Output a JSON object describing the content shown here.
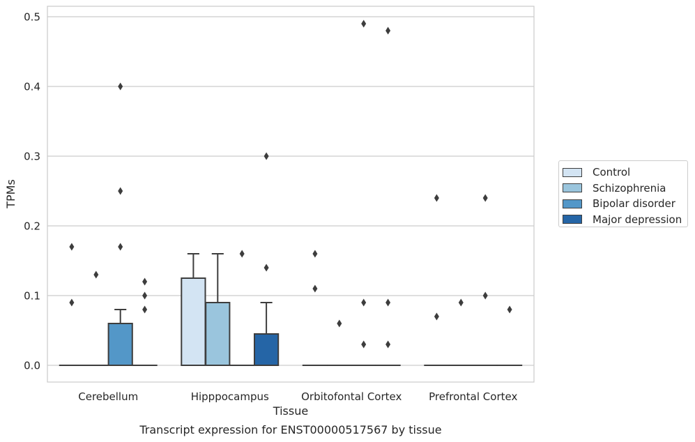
{
  "chart_data": {
    "type": "box",
    "title": "Transcript expression for ENST00000517567 by tissue",
    "xlabel": "Tissue",
    "ylabel": "TPMs",
    "ylim": [
      -0.024,
      0.515
    ],
    "yticks": [
      0.0,
      0.1,
      0.2,
      0.3,
      0.4,
      0.5
    ],
    "ytick_labels": [
      "0.0",
      "0.1",
      "0.2",
      "0.3",
      "0.4",
      "0.5"
    ],
    "categories": [
      "Cerebellum",
      "Hipppocampus",
      "Orbitofontal Cortex",
      "Prefrontal Cortex"
    ],
    "grid": "horizontal",
    "legend_position": "right",
    "series": [
      {
        "name": "Control",
        "color": "#d3e4f3",
        "boxes": [
          {
            "whislo": 0,
            "q1": 0,
            "med": 0,
            "q3": 0,
            "whishi": 0,
            "fliers": [
              0.09,
              0.17
            ]
          },
          {
            "whislo": 0,
            "q1": 0,
            "med": 0,
            "q3": 0.125,
            "whishi": 0.16,
            "fliers": []
          },
          {
            "whislo": 0,
            "q1": 0,
            "med": 0,
            "q3": 0,
            "whishi": 0,
            "fliers": [
              0.11,
              0.16
            ]
          },
          {
            "whislo": 0,
            "q1": 0,
            "med": 0,
            "q3": 0,
            "whishi": 0,
            "fliers": [
              0.07,
              0.24
            ]
          }
        ]
      },
      {
        "name": "Schizophrenia",
        "color": "#9ac5dd",
        "boxes": [
          {
            "whislo": 0,
            "q1": 0,
            "med": 0,
            "q3": 0,
            "whishi": 0,
            "fliers": [
              0.13
            ]
          },
          {
            "whislo": 0,
            "q1": 0,
            "med": 0,
            "q3": 0.09,
            "whishi": 0.16,
            "fliers": []
          },
          {
            "whislo": 0,
            "q1": 0,
            "med": 0,
            "q3": 0,
            "whishi": 0,
            "fliers": [
              0.06
            ]
          },
          {
            "whislo": 0,
            "q1": 0,
            "med": 0,
            "q3": 0,
            "whishi": 0,
            "fliers": [
              0.09
            ]
          }
        ]
      },
      {
        "name": "Bipolar disorder",
        "color": "#5397c8",
        "boxes": [
          {
            "whislo": 0,
            "q1": 0,
            "med": 0,
            "q3": 0.06,
            "whishi": 0.08,
            "fliers": [
              0.17,
              0.25,
              0.4
            ]
          },
          {
            "whislo": 0,
            "q1": 0,
            "med": 0,
            "q3": 0,
            "whishi": 0,
            "fliers": [
              0.16
            ]
          },
          {
            "whislo": 0,
            "q1": 0,
            "med": 0,
            "q3": 0,
            "whishi": 0,
            "fliers": [
              0.03,
              0.09,
              0.49
            ]
          },
          {
            "whislo": 0,
            "q1": 0,
            "med": 0,
            "q3": 0,
            "whishi": 0,
            "fliers": [
              0.1,
              0.24
            ]
          }
        ]
      },
      {
        "name": "Major depression",
        "color": "#2565a6",
        "boxes": [
          {
            "whislo": 0,
            "q1": 0,
            "med": 0,
            "q3": 0,
            "whishi": 0,
            "fliers": [
              0.08,
              0.1,
              0.12
            ]
          },
          {
            "whislo": 0,
            "q1": 0,
            "med": 0,
            "q3": 0.045,
            "whishi": 0.09,
            "fliers": [
              0.14,
              0.3
            ]
          },
          {
            "whislo": 0,
            "q1": 0,
            "med": 0,
            "q3": 0,
            "whishi": 0,
            "fliers": [
              0.03,
              0.09,
              0.48
            ]
          },
          {
            "whislo": 0,
            "q1": 0,
            "med": 0,
            "q3": 0,
            "whishi": 0,
            "fliers": [
              0.08
            ]
          }
        ]
      }
    ]
  }
}
